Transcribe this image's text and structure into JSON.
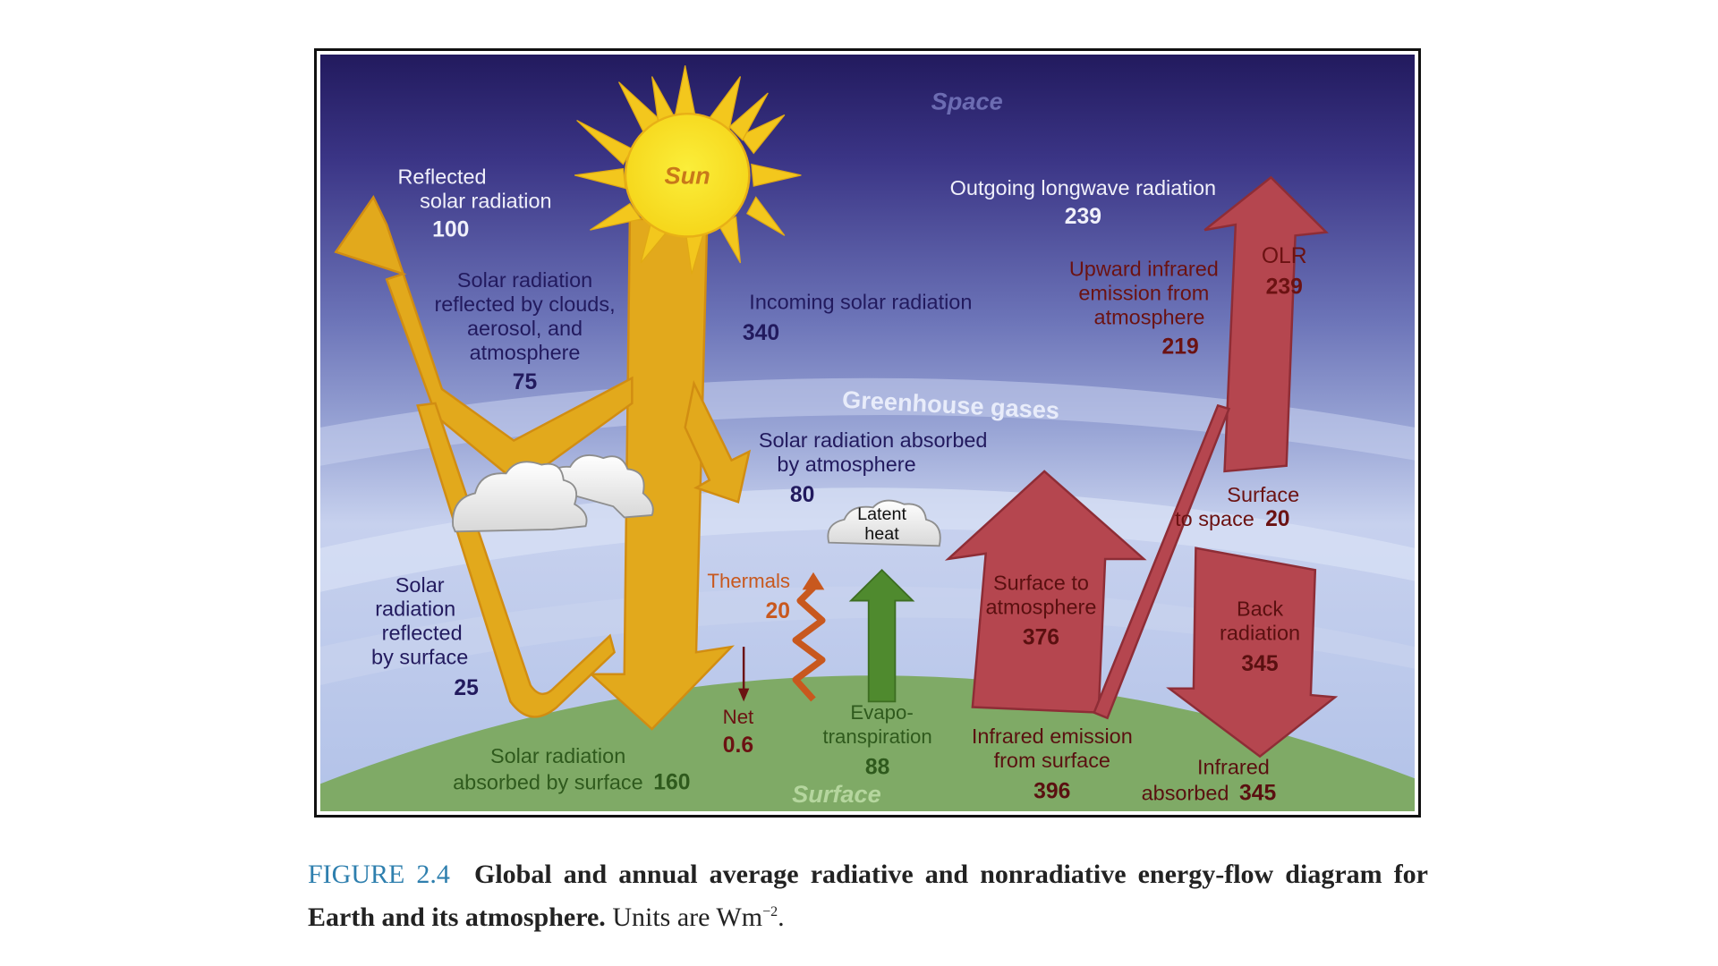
{
  "diagram": {
    "regions": {
      "space": "Space",
      "greenhouse": "Greenhouse gases",
      "surface": "Surface"
    },
    "sun": {
      "label": "Sun"
    },
    "reflected_solar": {
      "line1": "Reflected",
      "line2": "solar radiation",
      "value": "100"
    },
    "reflected_clouds": {
      "lines": [
        "Solar radiation",
        "reflected by clouds,",
        "aerosol, and",
        "atmosphere"
      ],
      "value": "75"
    },
    "reflected_surface": {
      "lines": [
        "Solar",
        "radiation",
        "reflected",
        "by surface"
      ],
      "value": "25"
    },
    "incoming_solar": {
      "label": "Incoming solar radiation",
      "value": "340"
    },
    "absorbed_atmosphere": {
      "line1": "Solar radiation absorbed",
      "line2": "by atmosphere",
      "value": "80"
    },
    "absorbed_surface": {
      "line1": "Solar radiation",
      "line2": "absorbed by surface",
      "value": "160"
    },
    "olr_top": {
      "label": "Outgoing longwave radiation",
      "value": "239"
    },
    "olr_arrow": {
      "label": "OLR",
      "value": "239"
    },
    "upward_atmosphere": {
      "lines": [
        "Upward infrared",
        "emission from",
        "atmosphere"
      ],
      "value": "219"
    },
    "surface_to_space": {
      "line1": "Surface",
      "line2": "to space",
      "value": "20"
    },
    "surface_to_atmosphere": {
      "line1": "Surface to",
      "line2": "atmosphere",
      "value": "376"
    },
    "back_radiation": {
      "line1": "Back",
      "line2": "radiation",
      "value": "345"
    },
    "ir_emission_surface": {
      "line1": "Infrared emission",
      "line2": "from surface",
      "value": "396"
    },
    "ir_absorbed": {
      "line1": "Infrared",
      "line2": "absorbed",
      "value": "345"
    },
    "thermals": {
      "label": "Thermals",
      "value": "20"
    },
    "net": {
      "label": "Net",
      "value": "0.6"
    },
    "latent_heat": {
      "line1": "Latent",
      "line2": "heat"
    },
    "evapotranspiration": {
      "line1": "Evapo-",
      "line2": "transpiration",
      "value": "88"
    },
    "colors": {
      "solar": "#e2a91c",
      "infrared": "#b5464f",
      "latent": "#4f8a2e",
      "thermal": "#c8581e",
      "space_top": "#221a5e",
      "surface": "#7faa66"
    }
  },
  "caption": {
    "figure_label": "FIGURE 2.4",
    "bold_text": "Global and annual average radiative and nonradiative energy-flow diagram for Earth and its atmosphere.",
    "plain_text": "Units are Wm",
    "superscript": "−2",
    "end": "."
  }
}
